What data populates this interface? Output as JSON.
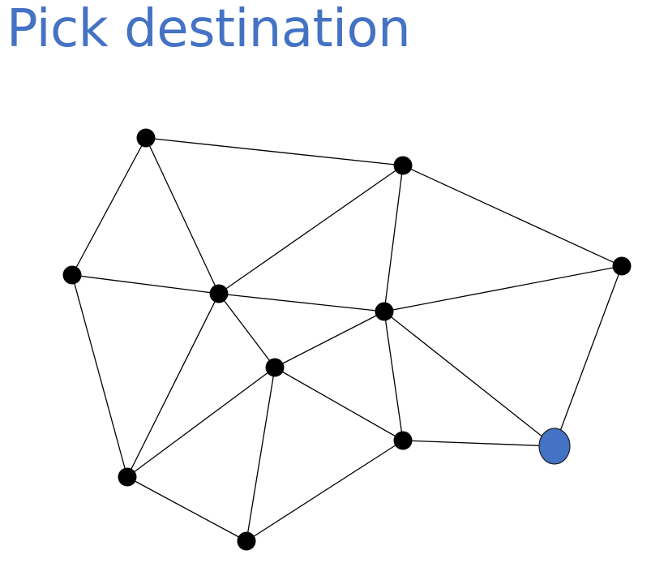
{
  "slide": {
    "title": "Pick destination"
  },
  "colors": {
    "title": "#4472c4",
    "destination_node": "#4472c4",
    "node": "#000000",
    "edge": "#000000"
  },
  "graph": {
    "nodes": [
      {
        "id": "n1",
        "role": "node"
      },
      {
        "id": "n2",
        "role": "node"
      },
      {
        "id": "n3",
        "role": "node"
      },
      {
        "id": "n4",
        "role": "node"
      },
      {
        "id": "n5",
        "role": "node"
      },
      {
        "id": "n6",
        "role": "node"
      },
      {
        "id": "n7",
        "role": "node"
      },
      {
        "id": "n8",
        "role": "node"
      },
      {
        "id": "n9",
        "role": "node"
      },
      {
        "id": "n10",
        "role": "node"
      },
      {
        "id": "n11",
        "role": "node"
      },
      {
        "id": "n12",
        "role": "destination"
      }
    ],
    "edges": [
      [
        "n1",
        "n2"
      ],
      [
        "n1",
        "n3"
      ],
      [
        "n1",
        "n4"
      ],
      [
        "n2",
        "n5"
      ],
      [
        "n2",
        "n4"
      ],
      [
        "n2",
        "n6"
      ],
      [
        "n3",
        "n4"
      ],
      [
        "n3",
        "n8"
      ],
      [
        "n4",
        "n6"
      ],
      [
        "n4",
        "n7"
      ],
      [
        "n4",
        "n8"
      ],
      [
        "n5",
        "n6"
      ],
      [
        "n5",
        "n12"
      ],
      [
        "n6",
        "n7"
      ],
      [
        "n6",
        "n9"
      ],
      [
        "n6",
        "n12"
      ],
      [
        "n7",
        "n8"
      ],
      [
        "n7",
        "n10"
      ],
      [
        "n7",
        "n9"
      ],
      [
        "n8",
        "n10"
      ],
      [
        "n9",
        "n10"
      ],
      [
        "n9",
        "n12"
      ]
    ]
  }
}
